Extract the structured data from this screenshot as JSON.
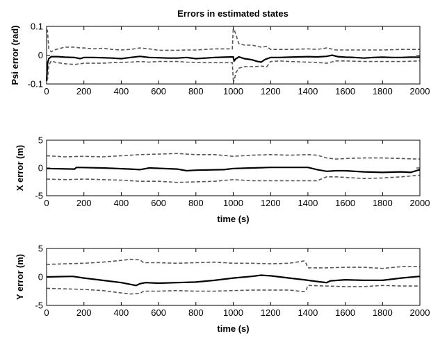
{
  "figure": {
    "title": "Errors in estimated states"
  },
  "colors": {
    "error_line": "#000000",
    "bound_line": "#555555",
    "background": "#ffffff"
  },
  "chart_data": [
    {
      "type": "line",
      "title": "Errors in estimated states",
      "xlabel": "",
      "ylabel": "Psi error (rad)",
      "xlim": [
        0,
        2000
      ],
      "ylim": [
        -0.1,
        0.1
      ],
      "xticks": [
        0,
        200,
        400,
        600,
        800,
        1000,
        1200,
        1400,
        1600,
        1800,
        2000
      ],
      "yticks": [
        0.1,
        0,
        -0.1
      ],
      "ytick_labels": [
        "0.1",
        "0",
        "-0.1"
      ],
      "grid": false,
      "series": [
        {
          "role": "error",
          "style": "solid",
          "x": [
            0,
            5,
            12,
            25,
            60,
            100,
            150,
            180,
            200,
            250,
            300,
            350,
            400,
            450,
            500,
            550,
            600,
            650,
            700,
            750,
            800,
            850,
            900,
            950,
            1000,
            1005,
            1015,
            1030,
            1060,
            1100,
            1130,
            1150,
            1170,
            1200,
            1250,
            1300,
            1350,
            1400,
            1450,
            1500,
            1530,
            1560,
            1600,
            1650,
            1700,
            1750,
            1800,
            1850,
            1900,
            1950,
            2000
          ],
          "y": [
            -0.09,
            -0.03,
            -0.012,
            -0.005,
            -0.005,
            -0.007,
            -0.008,
            -0.012,
            -0.008,
            -0.008,
            -0.009,
            -0.01,
            -0.012,
            -0.008,
            -0.004,
            -0.008,
            -0.009,
            -0.01,
            -0.01,
            -0.008,
            -0.012,
            -0.01,
            -0.008,
            -0.007,
            -0.006,
            -0.02,
            -0.012,
            -0.006,
            -0.012,
            -0.016,
            -0.022,
            -0.024,
            -0.015,
            -0.008,
            -0.008,
            -0.007,
            -0.006,
            -0.005,
            -0.006,
            -0.004,
            0.0,
            -0.005,
            -0.007,
            -0.008,
            -0.01,
            -0.008,
            -0.007,
            -0.008,
            -0.008,
            -0.007,
            -0.007
          ]
        },
        {
          "role": "upper-bound",
          "style": "dashed",
          "x": [
            0,
            5,
            12,
            25,
            50,
            100,
            150,
            180,
            200,
            250,
            300,
            350,
            400,
            450,
            500,
            550,
            600,
            650,
            700,
            750,
            800,
            850,
            900,
            950,
            995,
            1000,
            1005,
            1015,
            1030,
            1060,
            1100,
            1150,
            1180,
            1200,
            1250,
            1300,
            1400,
            1450,
            1500,
            1550,
            1600,
            1700,
            1800,
            1900,
            2000
          ],
          "y": [
            0.09,
            0.085,
            0.02,
            0.012,
            0.02,
            0.028,
            0.028,
            0.025,
            0.025,
            0.022,
            0.024,
            0.02,
            0.018,
            0.02,
            0.025,
            0.022,
            0.017,
            0.017,
            0.017,
            0.018,
            0.018,
            0.02,
            0.022,
            0.022,
            0.022,
            0.09,
            0.09,
            0.07,
            0.04,
            0.035,
            0.035,
            0.028,
            0.03,
            0.02,
            0.02,
            0.02,
            0.022,
            0.02,
            0.025,
            0.018,
            0.018,
            0.018,
            0.018,
            0.02,
            0.02
          ]
        },
        {
          "role": "lower-bound",
          "style": "dashed",
          "x": [
            0,
            5,
            12,
            25,
            50,
            100,
            150,
            180,
            200,
            250,
            300,
            350,
            400,
            450,
            500,
            550,
            600,
            650,
            700,
            750,
            800,
            850,
            900,
            950,
            995,
            1000,
            1005,
            1015,
            1030,
            1060,
            1100,
            1150,
            1180,
            1200,
            1250,
            1300,
            1400,
            1450,
            1500,
            1550,
            1600,
            1700,
            1800,
            1900,
            2000
          ],
          "y": [
            -0.085,
            -0.085,
            -0.035,
            -0.02,
            -0.025,
            -0.03,
            -0.032,
            -0.03,
            -0.028,
            -0.028,
            -0.028,
            -0.026,
            -0.025,
            -0.024,
            -0.022,
            -0.024,
            -0.022,
            -0.022,
            -0.022,
            -0.024,
            -0.025,
            -0.026,
            -0.026,
            -0.026,
            -0.026,
            -0.085,
            -0.088,
            -0.06,
            -0.045,
            -0.04,
            -0.04,
            -0.038,
            -0.04,
            -0.022,
            -0.02,
            -0.022,
            -0.024,
            -0.025,
            -0.028,
            -0.02,
            -0.02,
            -0.022,
            -0.022,
            -0.022,
            -0.02
          ]
        }
      ]
    },
    {
      "type": "line",
      "title": "",
      "xlabel": "time (s)",
      "ylabel": "X error (m)",
      "xlim": [
        0,
        2000
      ],
      "ylim": [
        -5,
        5
      ],
      "xticks": [
        0,
        200,
        400,
        600,
        800,
        1000,
        1200,
        1400,
        1600,
        1800,
        2000
      ],
      "yticks": [
        5,
        0,
        -5
      ],
      "ytick_labels": [
        "5",
        "0",
        "-5"
      ],
      "grid": false,
      "series": [
        {
          "role": "error",
          "style": "solid",
          "x": [
            0,
            150,
            160,
            300,
            450,
            500,
            550,
            700,
            750,
            800,
            950,
            1000,
            1100,
            1200,
            1350,
            1400,
            1450,
            1500,
            1550,
            1600,
            1700,
            1800,
            1900,
            1950,
            2000
          ],
          "y": [
            -0.1,
            -0.2,
            0.1,
            0.0,
            -0.2,
            -0.3,
            0.0,
            -0.2,
            -0.5,
            -0.4,
            -0.3,
            -0.1,
            0.0,
            0.1,
            0.1,
            0.1,
            -0.3,
            -0.6,
            -0.5,
            -0.5,
            -0.7,
            -0.8,
            -0.7,
            -0.8,
            -0.3
          ]
        },
        {
          "role": "upper-bound",
          "style": "dashed",
          "x": [
            0,
            100,
            200,
            300,
            400,
            500,
            600,
            700,
            800,
            900,
            1000,
            1100,
            1200,
            1300,
            1400,
            1450,
            1500,
            1550,
            1600,
            1700,
            1800,
            1900,
            2000
          ],
          "y": [
            2.2,
            2.0,
            2.1,
            2.0,
            2.2,
            2.4,
            2.5,
            2.6,
            2.4,
            2.4,
            2.1,
            2.3,
            2.4,
            2.3,
            2.4,
            2.3,
            1.8,
            1.6,
            1.7,
            1.8,
            1.8,
            1.7,
            1.6
          ]
        },
        {
          "role": "lower-bound",
          "style": "dashed",
          "x": [
            0,
            100,
            200,
            300,
            400,
            500,
            600,
            700,
            800,
            900,
            1000,
            1100,
            1200,
            1300,
            1400,
            1450,
            1500,
            1550,
            1600,
            1700,
            1800,
            1900,
            2000
          ],
          "y": [
            -2.0,
            -2.1,
            -2.0,
            -2.1,
            -2.2,
            -2.4,
            -2.4,
            -2.6,
            -2.5,
            -2.4,
            -2.1,
            -2.3,
            -2.3,
            -2.3,
            -2.3,
            -2.3,
            -1.6,
            -1.6,
            -1.7,
            -1.9,
            -1.8,
            -1.6,
            -1.3
          ]
        }
      ]
    },
    {
      "type": "line",
      "title": "",
      "xlabel": "time (s)",
      "ylabel": "Y error (m)",
      "xlim": [
        0,
        2000
      ],
      "ylim": [
        -5,
        5
      ],
      "xticks": [
        0,
        200,
        400,
        600,
        800,
        1000,
        1200,
        1400,
        1600,
        1800,
        2000
      ],
      "yticks": [
        5,
        0,
        -5
      ],
      "ytick_labels": [
        "5",
        "0",
        "-5"
      ],
      "grid": false,
      "series": [
        {
          "role": "error",
          "style": "solid",
          "x": [
            0,
            140,
            200,
            300,
            400,
            480,
            500,
            530,
            600,
            700,
            800,
            900,
            1000,
            1100,
            1150,
            1200,
            1300,
            1380,
            1450,
            1500,
            1520,
            1600,
            1700,
            1800,
            1900,
            2000
          ],
          "y": [
            0.0,
            0.1,
            -0.2,
            -0.6,
            -1.0,
            -1.5,
            -1.2,
            -1.0,
            -1.1,
            -1.0,
            -0.9,
            -0.6,
            -0.2,
            0.1,
            0.3,
            0.2,
            -0.2,
            -0.5,
            -0.8,
            -1.0,
            -0.7,
            -0.5,
            -0.6,
            -0.6,
            -0.2,
            0.1
          ]
        },
        {
          "role": "upper-bound",
          "style": "dashed",
          "x": [
            0,
            100,
            200,
            300,
            400,
            450,
            500,
            520,
            600,
            700,
            800,
            900,
            1000,
            1100,
            1200,
            1300,
            1380,
            1390,
            1400,
            1500,
            1600,
            1700,
            1800,
            1900,
            2000
          ],
          "y": [
            2.2,
            2.3,
            2.4,
            2.6,
            2.9,
            3.1,
            3.0,
            2.5,
            2.5,
            2.4,
            2.5,
            2.6,
            2.4,
            2.4,
            2.3,
            2.4,
            2.8,
            2.4,
            1.6,
            1.6,
            1.7,
            1.7,
            1.5,
            1.8,
            1.8
          ]
        },
        {
          "role": "lower-bound",
          "style": "dashed",
          "x": [
            0,
            100,
            200,
            300,
            400,
            450,
            500,
            520,
            600,
            700,
            800,
            900,
            1000,
            1100,
            1200,
            1300,
            1380,
            1390,
            1400,
            1500,
            1600,
            1700,
            1800,
            1900,
            2000
          ],
          "y": [
            -2.0,
            -2.1,
            -2.2,
            -2.4,
            -2.8,
            -3.0,
            -2.9,
            -2.5,
            -2.5,
            -2.4,
            -2.5,
            -2.5,
            -2.4,
            -2.3,
            -2.3,
            -2.3,
            -2.6,
            -2.4,
            -1.5,
            -1.6,
            -1.7,
            -1.7,
            -1.5,
            -1.6,
            -1.6
          ]
        }
      ]
    }
  ]
}
